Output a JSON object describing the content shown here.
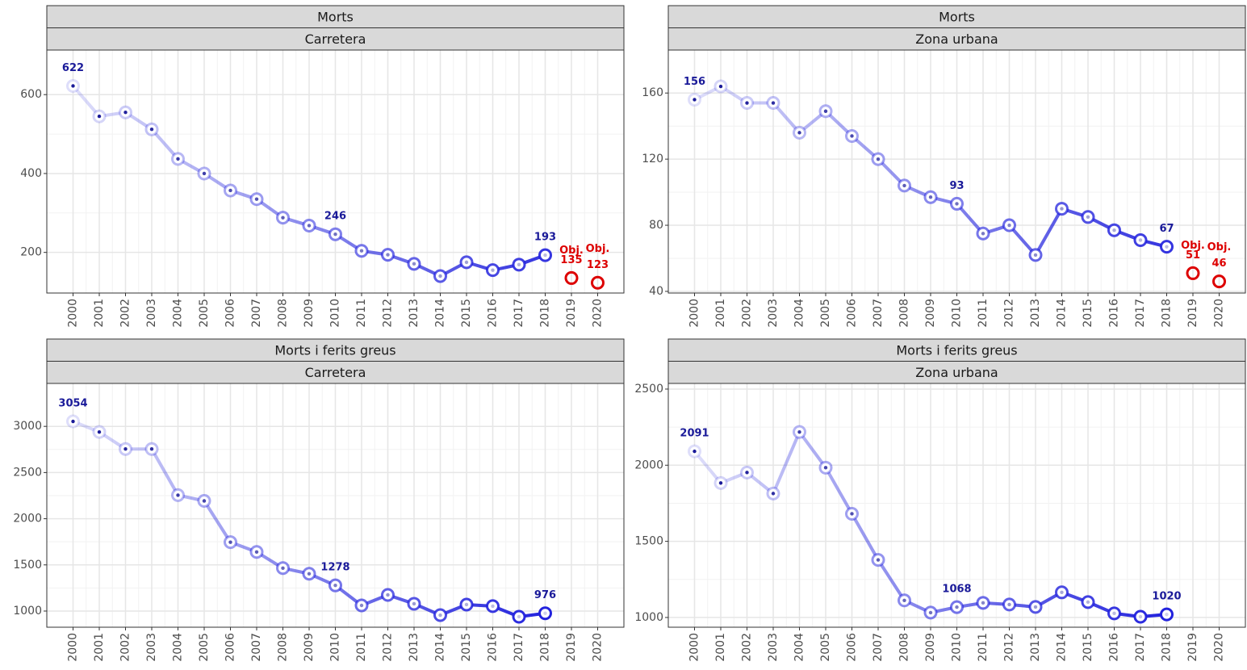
{
  "chart_data": [
    {
      "type": "line",
      "title": "Morts",
      "subtitle": "Carretera",
      "x": [
        2000,
        2001,
        2002,
        2003,
        2004,
        2005,
        2006,
        2007,
        2008,
        2009,
        2010,
        2011,
        2012,
        2013,
        2014,
        2015,
        2016,
        2017,
        2018,
        2019,
        2020
      ],
      "series": [
        {
          "color": "#2222dd",
          "values": [
            622,
            545,
            555,
            512,
            437,
            400,
            357,
            335,
            288,
            268,
            246,
            204,
            194,
            171,
            140,
            175,
            155,
            169,
            193,
            null,
            null
          ],
          "value_labels": [
            "622",
            null,
            null,
            null,
            null,
            null,
            null,
            null,
            null,
            null,
            "246",
            null,
            null,
            null,
            null,
            null,
            null,
            null,
            "193",
            null,
            null
          ]
        },
        {
          "name": "Obj.",
          "color": "#dd0000",
          "marker_only": true,
          "values": [
            null,
            null,
            null,
            null,
            null,
            null,
            null,
            null,
            null,
            null,
            null,
            null,
            null,
            null,
            null,
            null,
            null,
            null,
            null,
            135,
            123
          ],
          "value_labels": [
            null,
            null,
            null,
            null,
            null,
            null,
            null,
            null,
            null,
            null,
            null,
            null,
            null,
            null,
            null,
            null,
            null,
            null,
            null,
            "135",
            "123"
          ]
        }
      ],
      "xlim": [
        1999,
        2021
      ],
      "xticks": [
        2000,
        2001,
        2002,
        2003,
        2004,
        2005,
        2006,
        2007,
        2008,
        2009,
        2010,
        2011,
        2012,
        2013,
        2014,
        2015,
        2016,
        2017,
        2018,
        2019,
        2020
      ],
      "ylim": [
        97,
        713
      ],
      "yticks": [
        200,
        400,
        600
      ],
      "grid": true
    },
    {
      "type": "line",
      "title": "Morts",
      "subtitle": "Zona urbana",
      "x": [
        2000,
        2001,
        2002,
        2003,
        2004,
        2005,
        2006,
        2007,
        2008,
        2009,
        2010,
        2011,
        2012,
        2013,
        2014,
        2015,
        2016,
        2017,
        2018,
        2019,
        2020
      ],
      "series": [
        {
          "color": "#2222dd",
          "values": [
            156,
            164,
            154,
            154,
            136,
            149,
            134,
            120,
            104,
            97,
            93,
            75,
            80,
            62,
            90,
            85,
            77,
            71,
            67,
            null,
            null
          ],
          "value_labels": [
            "156",
            null,
            null,
            null,
            null,
            null,
            null,
            null,
            null,
            null,
            "93",
            null,
            null,
            null,
            null,
            null,
            null,
            null,
            "67",
            null,
            null
          ]
        },
        {
          "name": "Obj.",
          "color": "#dd0000",
          "marker_only": true,
          "values": [
            null,
            null,
            null,
            null,
            null,
            null,
            null,
            null,
            null,
            null,
            null,
            null,
            null,
            null,
            null,
            null,
            null,
            null,
            null,
            51,
            46
          ],
          "value_labels": [
            null,
            null,
            null,
            null,
            null,
            null,
            null,
            null,
            null,
            null,
            null,
            null,
            null,
            null,
            null,
            null,
            null,
            null,
            null,
            "51",
            "46"
          ]
        }
      ],
      "xlim": [
        1999,
        2021
      ],
      "xticks": [
        2000,
        2001,
        2002,
        2003,
        2004,
        2005,
        2006,
        2007,
        2008,
        2009,
        2010,
        2011,
        2012,
        2013,
        2014,
        2015,
        2016,
        2017,
        2018,
        2019,
        2020
      ],
      "ylim": [
        39,
        186
      ],
      "yticks": [
        40,
        80,
        120,
        160
      ],
      "grid": true
    },
    {
      "type": "line",
      "title": "Morts i ferits greus",
      "subtitle": "Carretera",
      "x": [
        2000,
        2001,
        2002,
        2003,
        2004,
        2005,
        2006,
        2007,
        2008,
        2009,
        2010,
        2011,
        2012,
        2013,
        2014,
        2015,
        2016,
        2017,
        2018
      ],
      "series": [
        {
          "color": "#2222dd",
          "values": [
            3054,
            2939,
            2755,
            2755,
            2255,
            2193,
            1746,
            1640,
            1465,
            1404,
            1278,
            1061,
            1175,
            1079,
            956,
            1070,
            1053,
            939,
            976
          ],
          "value_labels": [
            "3054",
            null,
            null,
            null,
            null,
            null,
            null,
            null,
            null,
            null,
            "1278",
            null,
            null,
            null,
            null,
            null,
            null,
            null,
            "976"
          ]
        }
      ],
      "xlim": [
        1999,
        2021
      ],
      "xticks": [
        2000,
        2001,
        2002,
        2003,
        2004,
        2005,
        2006,
        2007,
        2008,
        2009,
        2010,
        2011,
        2012,
        2013,
        2014,
        2015,
        2016,
        2017,
        2018,
        2019,
        2020
      ],
      "ylim": [
        825,
        3465
      ],
      "yticks": [
        1000,
        1500,
        2000,
        2500,
        3000
      ],
      "grid": true
    },
    {
      "type": "line",
      "title": "Morts i ferits greus",
      "subtitle": "Zona urbana",
      "x": [
        2000,
        2001,
        2002,
        2003,
        2004,
        2005,
        2006,
        2007,
        2008,
        2009,
        2010,
        2011,
        2012,
        2013,
        2014,
        2015,
        2016,
        2017,
        2018
      ],
      "series": [
        {
          "color": "#2222dd",
          "values": [
            2091,
            1883,
            1952,
            1814,
            2218,
            1984,
            1681,
            1378,
            1112,
            1032,
            1068,
            1096,
            1085,
            1069,
            1165,
            1101,
            1027,
            1005,
            1020
          ],
          "value_labels": [
            "2091",
            null,
            null,
            null,
            null,
            null,
            null,
            null,
            null,
            null,
            "1068",
            null,
            null,
            null,
            null,
            null,
            null,
            null,
            "1020"
          ]
        }
      ],
      "xlim": [
        1999,
        2021
      ],
      "xticks": [
        2000,
        2001,
        2002,
        2003,
        2004,
        2005,
        2006,
        2007,
        2008,
        2009,
        2010,
        2011,
        2012,
        2013,
        2014,
        2015,
        2016,
        2017,
        2018,
        2019,
        2020
      ],
      "ylim": [
        936,
        2537
      ],
      "yticks": [
        1000,
        1500,
        2000,
        2500
      ],
      "grid": true
    }
  ]
}
